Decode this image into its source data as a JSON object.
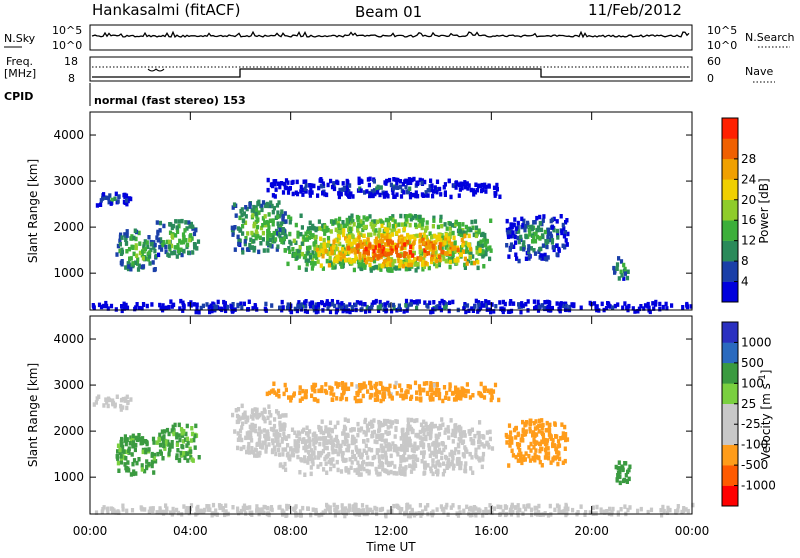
{
  "header": {
    "station": "Hankasalmi (fitACF)",
    "beam": "Beam 01",
    "date": "11/Feb/2012",
    "cpid_label": "CPID",
    "cpid_text": "normal (fast stereo) 153"
  },
  "noise_panel": {
    "left_label": "N.Sky",
    "right_label": "N.Search",
    "left_ticks": [
      "10^5",
      "10^0"
    ],
    "right_ticks": [
      "10^5",
      "10^0"
    ]
  },
  "freq_panel": {
    "left_label_1": "Freq.",
    "left_label_2": "[MHz]",
    "right_label": "Nave",
    "left_ticks": [
      "18",
      "8"
    ],
    "right_ticks": [
      "60",
      "0"
    ]
  },
  "colors": {
    "power_scale": [
      "#0000dd",
      "#1a3fa8",
      "#2a8a5a",
      "#3caf3a",
      "#8fcc2a",
      "#f0d000",
      "#f0a000",
      "#f06000",
      "#ff2000"
    ],
    "velocity_scale": [
      "#ff0000",
      "#ff5a00",
      "#ff9c1a",
      "#c8c8c8",
      "#c8c8c8",
      "#7ad040",
      "#3a9a40",
      "#2a6abf",
      "#2a30c0"
    ]
  },
  "chart_data": [
    {
      "type": "heatmap",
      "panel": "power",
      "ylabel": "Slant Range [km]",
      "yticks": [
        "1000",
        "2000",
        "3000",
        "4000"
      ],
      "ylim": [
        200,
        4500
      ],
      "xlim": [
        0,
        24
      ],
      "colorbar_label": "Power [dB]",
      "colorbar_ticks": [
        "4",
        "8",
        "12",
        "16",
        "20",
        "24",
        "28"
      ],
      "regions": [
        {
          "t": [
            0.1,
            1.6
          ],
          "r": [
            2500,
            2800
          ],
          "v": 8
        },
        {
          "t": [
            1.0,
            2.6
          ],
          "r": [
            1100,
            2000
          ],
          "v": 14
        },
        {
          "t": [
            2.6,
            4.3
          ],
          "r": [
            1400,
            2200
          ],
          "v": 14
        },
        {
          "t": [
            5.6,
            7.8
          ],
          "r": [
            1500,
            2600
          ],
          "v": 14
        },
        {
          "t": [
            7.5,
            16.0
          ],
          "r": [
            1100,
            2300
          ],
          "v": 18
        },
        {
          "t": [
            9.0,
            15.5
          ],
          "r": [
            1200,
            1900
          ],
          "v": 26
        },
        {
          "t": [
            7.0,
            16.3
          ],
          "r": [
            2700,
            3100
          ],
          "v": 6
        },
        {
          "t": [
            16.5,
            19.0
          ],
          "r": [
            1300,
            2300
          ],
          "v": 10
        },
        {
          "t": [
            20.8,
            21.5
          ],
          "r": [
            900,
            1400
          ],
          "v": 12
        },
        {
          "t": [
            0.0,
            24.0
          ],
          "r": [
            200,
            450
          ],
          "v": 6
        }
      ]
    },
    {
      "type": "heatmap",
      "panel": "velocity",
      "ylabel": "Slant Range [km]",
      "yticks": [
        "1000",
        "2000",
        "3000",
        "4000"
      ],
      "ylim": [
        200,
        4500
      ],
      "xlim": [
        0,
        24
      ],
      "xlabel": "Time UT",
      "xticks": [
        "00:00",
        "04:00",
        "08:00",
        "12:00",
        "16:00",
        "20:00",
        "00:00"
      ],
      "colorbar_label": "Velocity [m s^-1]",
      "colorbar_ticks": [
        "1000",
        "500",
        "100",
        "25",
        "-25",
        "-100",
        "-500",
        "-1000"
      ],
      "regions": [
        {
          "t": [
            0.1,
            1.6
          ],
          "r": [
            2500,
            2800
          ],
          "v": 0
        },
        {
          "t": [
            1.0,
            2.6
          ],
          "r": [
            1100,
            2000
          ],
          "v": 150
        },
        {
          "t": [
            2.6,
            4.3
          ],
          "r": [
            1400,
            2200
          ],
          "v": 120
        },
        {
          "t": [
            5.6,
            7.8
          ],
          "r": [
            1500,
            2600
          ],
          "v": 0
        },
        {
          "t": [
            7.5,
            16.0
          ],
          "r": [
            1100,
            2300
          ],
          "v": 0
        },
        {
          "t": [
            7.0,
            16.3
          ],
          "r": [
            2700,
            3100
          ],
          "v": -200
        },
        {
          "t": [
            16.5,
            19.0
          ],
          "r": [
            1300,
            2300
          ],
          "v": -300
        },
        {
          "t": [
            20.8,
            21.5
          ],
          "r": [
            900,
            1400
          ],
          "v": 300
        },
        {
          "t": [
            0.0,
            24.0
          ],
          "r": [
            200,
            450
          ],
          "v": -50
        }
      ]
    }
  ]
}
